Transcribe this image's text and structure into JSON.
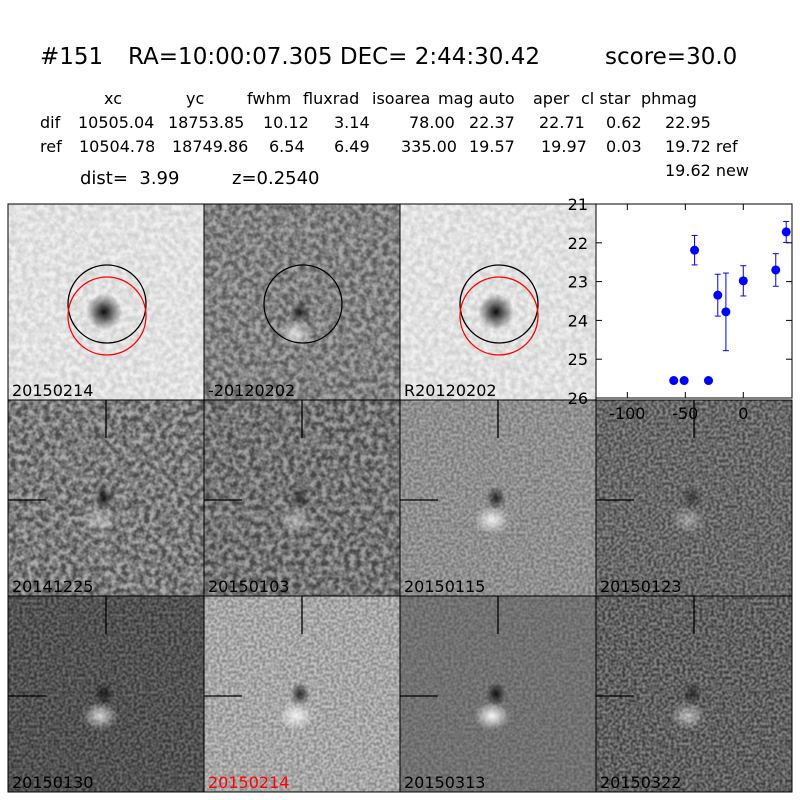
{
  "header": {
    "id": "#151",
    "coords": "RA=10:00:07.305 DEC= 2:44:30.42",
    "score": "score=30.0"
  },
  "table": {
    "columns": [
      "xc",
      "yc",
      "fwhm",
      "fluxrad",
      "isoarea",
      "mag auto",
      "aper",
      "cl star",
      "phmag"
    ],
    "rows": [
      [
        "dif",
        "10505.04",
        "18753.85",
        "10.12",
        "3.14",
        "78.00",
        "22.37",
        "22.71",
        "0.62",
        "22.95"
      ],
      [
        "ref",
        "10504.78",
        "18749.86",
        "6.54",
        "6.49",
        "335.00",
        "19.57",
        "19.97",
        "0.03",
        "19.72 ref"
      ]
    ],
    "extra": "19.62 new"
  },
  "info": {
    "dist": "dist=  3.99",
    "z": "z=0.2540"
  },
  "stamps": [
    {
      "label": "20150214",
      "color": "#000000"
    },
    {
      "label": "-20120202",
      "color": "#000000"
    },
    {
      "label": "R20120202",
      "color": "#000000"
    },
    {
      "label": "20141225",
      "color": "#000000"
    },
    {
      "label": "20150103",
      "color": "#000000"
    },
    {
      "label": "20150115",
      "color": "#000000"
    },
    {
      "label": "20150123",
      "color": "#000000"
    },
    {
      "label": "20150130",
      "color": "#000000"
    },
    {
      "label": "20150214",
      "color": "#ff0000"
    },
    {
      "label": "20150313",
      "color": "#000000"
    },
    {
      "label": "20150322",
      "color": "#000000"
    }
  ],
  "chart_data": {
    "type": "errorbar",
    "color": "#0000ff",
    "x": [
      -60,
      -51,
      -42,
      -30,
      -22,
      -15,
      0,
      28,
      37
    ],
    "values": [
      25.55,
      25.55,
      22.19,
      25.55,
      23.35,
      23.78,
      22.98,
      22.7,
      21.72
    ],
    "errors": [
      null,
      null,
      0.38,
      null,
      0.54,
      1.0,
      0.39,
      0.42,
      0.27
    ],
    "xlim": [
      -127,
      42
    ],
    "ylim": [
      26,
      21
    ],
    "xticks": [
      -100,
      -50,
      0
    ],
    "yticks": [
      21,
      22,
      23,
      24,
      25,
      26
    ]
  }
}
